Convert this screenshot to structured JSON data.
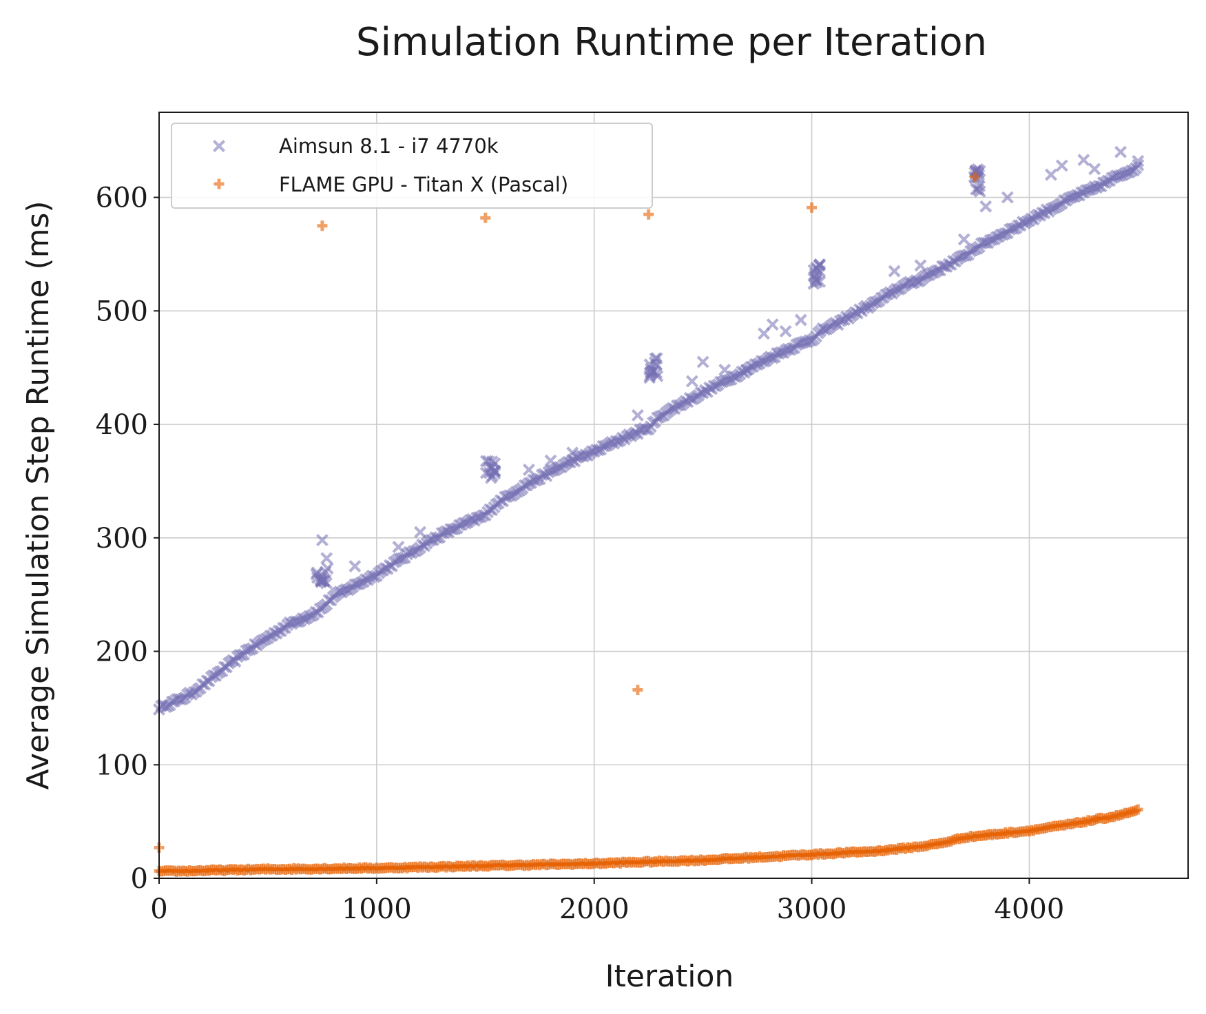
{
  "chart_data": {
    "type": "scatter",
    "title": "Simulation Runtime per Iteration",
    "xlabel": "Iteration",
    "ylabel": "Average Simulation Step Runtime (ms)",
    "xlim": [
      0,
      4730
    ],
    "ylim": [
      0,
      675
    ],
    "xticks": [
      0,
      1000,
      2000,
      3000,
      4000
    ],
    "yticks": [
      0,
      100,
      200,
      300,
      400,
      500,
      600
    ],
    "grid": true,
    "legend_position": "top-left",
    "series": [
      {
        "name": "Aimsun 8.1 - i7 4770k",
        "color": "#7570b3",
        "marker": "x",
        "trend": [
          [
            0,
            150
          ],
          [
            100,
            158
          ],
          [
            150,
            163
          ],
          [
            200,
            170
          ],
          [
            300,
            185
          ],
          [
            400,
            200
          ],
          [
            500,
            212
          ],
          [
            600,
            224
          ],
          [
            700,
            232
          ],
          [
            750,
            238
          ],
          [
            800,
            248
          ],
          [
            900,
            258
          ],
          [
            1000,
            268
          ],
          [
            1100,
            280
          ],
          [
            1200,
            292
          ],
          [
            1300,
            303
          ],
          [
            1400,
            312
          ],
          [
            1500,
            320
          ],
          [
            1550,
            330
          ],
          [
            1600,
            336
          ],
          [
            1700,
            348
          ],
          [
            1800,
            358
          ],
          [
            1900,
            368
          ],
          [
            2000,
            376
          ],
          [
            2100,
            385
          ],
          [
            2200,
            393
          ],
          [
            2260,
            398
          ],
          [
            2300,
            407
          ],
          [
            2400,
            418
          ],
          [
            2500,
            428
          ],
          [
            2600,
            438
          ],
          [
            2700,
            448
          ],
          [
            2800,
            458
          ],
          [
            2900,
            467
          ],
          [
            3000,
            475
          ],
          [
            3050,
            483
          ],
          [
            3100,
            487
          ],
          [
            3200,
            498
          ],
          [
            3300,
            508
          ],
          [
            3400,
            520
          ],
          [
            3500,
            528
          ],
          [
            3600,
            538
          ],
          [
            3700,
            548
          ],
          [
            3750,
            555
          ],
          [
            3800,
            560
          ],
          [
            3900,
            570
          ],
          [
            4000,
            580
          ],
          [
            4100,
            590
          ],
          [
            4200,
            600
          ],
          [
            4300,
            608
          ],
          [
            4400,
            618
          ],
          [
            4500,
            627
          ]
        ],
        "clusters": [
          [
            750,
            272,
            60,
            12
          ],
          [
            1520,
            360,
            50,
            8
          ],
          [
            2270,
            450,
            50,
            9
          ],
          [
            3020,
            532,
            40,
            10
          ],
          [
            3760,
            615,
            30,
            10
          ]
        ],
        "outliers": [
          [
            750,
            298
          ],
          [
            770,
            282
          ],
          [
            900,
            275
          ],
          [
            1100,
            292
          ],
          [
            1200,
            305
          ],
          [
            1700,
            360
          ],
          [
            1800,
            368
          ],
          [
            1900,
            375
          ],
          [
            2200,
            408
          ],
          [
            2450,
            438
          ],
          [
            2500,
            455
          ],
          [
            2600,
            448
          ],
          [
            2700,
            448
          ],
          [
            2780,
            480
          ],
          [
            2820,
            488
          ],
          [
            2880,
            482
          ],
          [
            2950,
            492
          ],
          [
            3380,
            535
          ],
          [
            3500,
            540
          ],
          [
            3700,
            563
          ],
          [
            3800,
            592
          ],
          [
            3900,
            600
          ],
          [
            4100,
            620
          ],
          [
            4150,
            628
          ],
          [
            4250,
            633
          ],
          [
            4300,
            625
          ],
          [
            4420,
            640
          ],
          [
            4500,
            632
          ]
        ]
      },
      {
        "name": "FLAME GPU - Titan X (Pascal)",
        "color": "#e66101",
        "marker": "plus",
        "trend": [
          [
            0,
            6
          ],
          [
            500,
            8
          ],
          [
            1000,
            9
          ],
          [
            1500,
            11
          ],
          [
            2000,
            13
          ],
          [
            2500,
            16
          ],
          [
            3000,
            21
          ],
          [
            3300,
            24
          ],
          [
            3500,
            28
          ],
          [
            3600,
            31
          ],
          [
            3700,
            36
          ],
          [
            3800,
            38
          ],
          [
            4000,
            42
          ],
          [
            4200,
            48
          ],
          [
            4400,
            55
          ],
          [
            4500,
            60
          ]
        ],
        "outliers": [
          [
            0,
            27
          ],
          [
            750,
            575
          ],
          [
            1500,
            582
          ],
          [
            2200,
            166
          ],
          [
            2250,
            585
          ],
          [
            3000,
            591
          ],
          [
            3750,
            618
          ]
        ]
      }
    ]
  }
}
